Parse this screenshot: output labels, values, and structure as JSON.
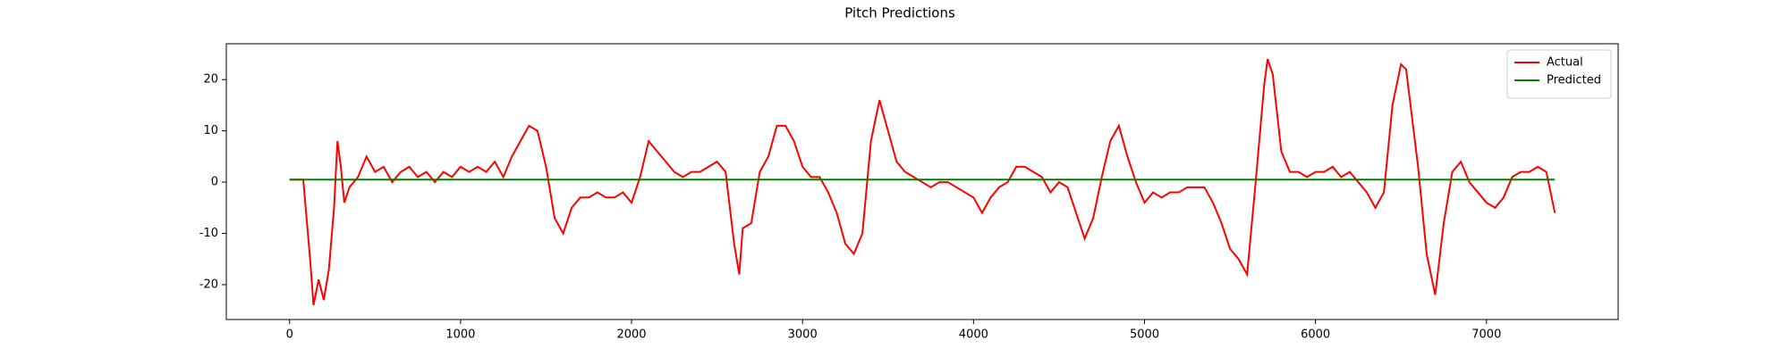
{
  "chart_data": {
    "type": "line",
    "title": "Pitch Predictions",
    "xlim": [
      -370,
      7770
    ],
    "ylim": [
      -26.8,
      27.0
    ],
    "xticks": [
      0,
      1000,
      2000,
      3000,
      4000,
      5000,
      6000,
      7000
    ],
    "yticks": [
      -20,
      -10,
      0,
      10,
      20
    ],
    "legend": "upper right",
    "series": [
      {
        "name": "Actual",
        "color": "#ff0000",
        "x": [
          0,
          80,
          120,
          140,
          170,
          200,
          230,
          260,
          280,
          300,
          320,
          350,
          400,
          450,
          500,
          550,
          600,
          650,
          700,
          750,
          800,
          850,
          900,
          950,
          1000,
          1050,
          1100,
          1150,
          1200,
          1250,
          1300,
          1350,
          1400,
          1450,
          1500,
          1550,
          1600,
          1650,
          1700,
          1750,
          1800,
          1850,
          1900,
          1950,
          2000,
          2050,
          2100,
          2150,
          2200,
          2250,
          2300,
          2350,
          2400,
          2450,
          2500,
          2550,
          2600,
          2630,
          2650,
          2700,
          2750,
          2800,
          2850,
          2900,
          2950,
          3000,
          3050,
          3100,
          3150,
          3200,
          3250,
          3300,
          3350,
          3400,
          3450,
          3500,
          3550,
          3600,
          3650,
          3700,
          3750,
          3800,
          3850,
          3900,
          3950,
          4000,
          4050,
          4100,
          4150,
          4200,
          4250,
          4300,
          4350,
          4400,
          4450,
          4500,
          4550,
          4600,
          4650,
          4700,
          4750,
          4800,
          4850,
          4900,
          4950,
          5000,
          5050,
          5100,
          5150,
          5200,
          5250,
          5300,
          5350,
          5400,
          5450,
          5500,
          5550,
          5600,
          5650,
          5700,
          5720,
          5750,
          5800,
          5850,
          5900,
          5950,
          6000,
          6050,
          6100,
          6150,
          6200,
          6250,
          6300,
          6350,
          6400,
          6450,
          6500,
          6530,
          6600,
          6650,
          6700,
          6750,
          6800,
          6850,
          6900,
          6950,
          7000,
          7050,
          7100,
          7150,
          7200,
          7250,
          7300,
          7350,
          7400
        ],
        "values": [
          0.5,
          0.5,
          -15,
          -24,
          -19,
          -23,
          -17,
          -5,
          8,
          3,
          -4,
          -1,
          1,
          5,
          2,
          3,
          0,
          2,
          3,
          1,
          2,
          0,
          2,
          1,
          3,
          2,
          3,
          2,
          4,
          1,
          5,
          8,
          11,
          10,
          3,
          -7,
          -10,
          -5,
          -3,
          -3,
          -2,
          -3,
          -3,
          -2,
          -4,
          1,
          8,
          6,
          4,
          2,
          1,
          2,
          2,
          3,
          4,
          2,
          -12,
          -18,
          -9,
          -8,
          2,
          5,
          11,
          11,
          8,
          3,
          1,
          1,
          -2,
          -6,
          -12,
          -14,
          -10,
          8,
          16,
          10,
          4,
          2,
          1,
          0,
          -1,
          0,
          0,
          -1,
          -2,
          -3,
          -6,
          -3,
          -1,
          0,
          3,
          3,
          2,
          1,
          -2,
          0,
          -1,
          -6,
          -11,
          -7,
          1,
          8,
          11,
          5,
          0,
          -4,
          -2,
          -3,
          -2,
          -2,
          -1,
          -1,
          -1,
          -4,
          -8,
          -13,
          -15,
          -18,
          0,
          19,
          24,
          21,
          6,
          2,
          2,
          1,
          2,
          2,
          3,
          1,
          2,
          0,
          -2,
          -5,
          -2,
          15,
          23,
          22,
          3,
          -14,
          -22,
          -8,
          2,
          4,
          0,
          -2,
          -4,
          -5,
          -3,
          1,
          2,
          2,
          3,
          2,
          -6
        ]
      },
      {
        "name": "Predicted",
        "color": "#008000",
        "x": [
          0,
          7400
        ],
        "values": [
          0.5,
          0.5
        ]
      }
    ]
  }
}
